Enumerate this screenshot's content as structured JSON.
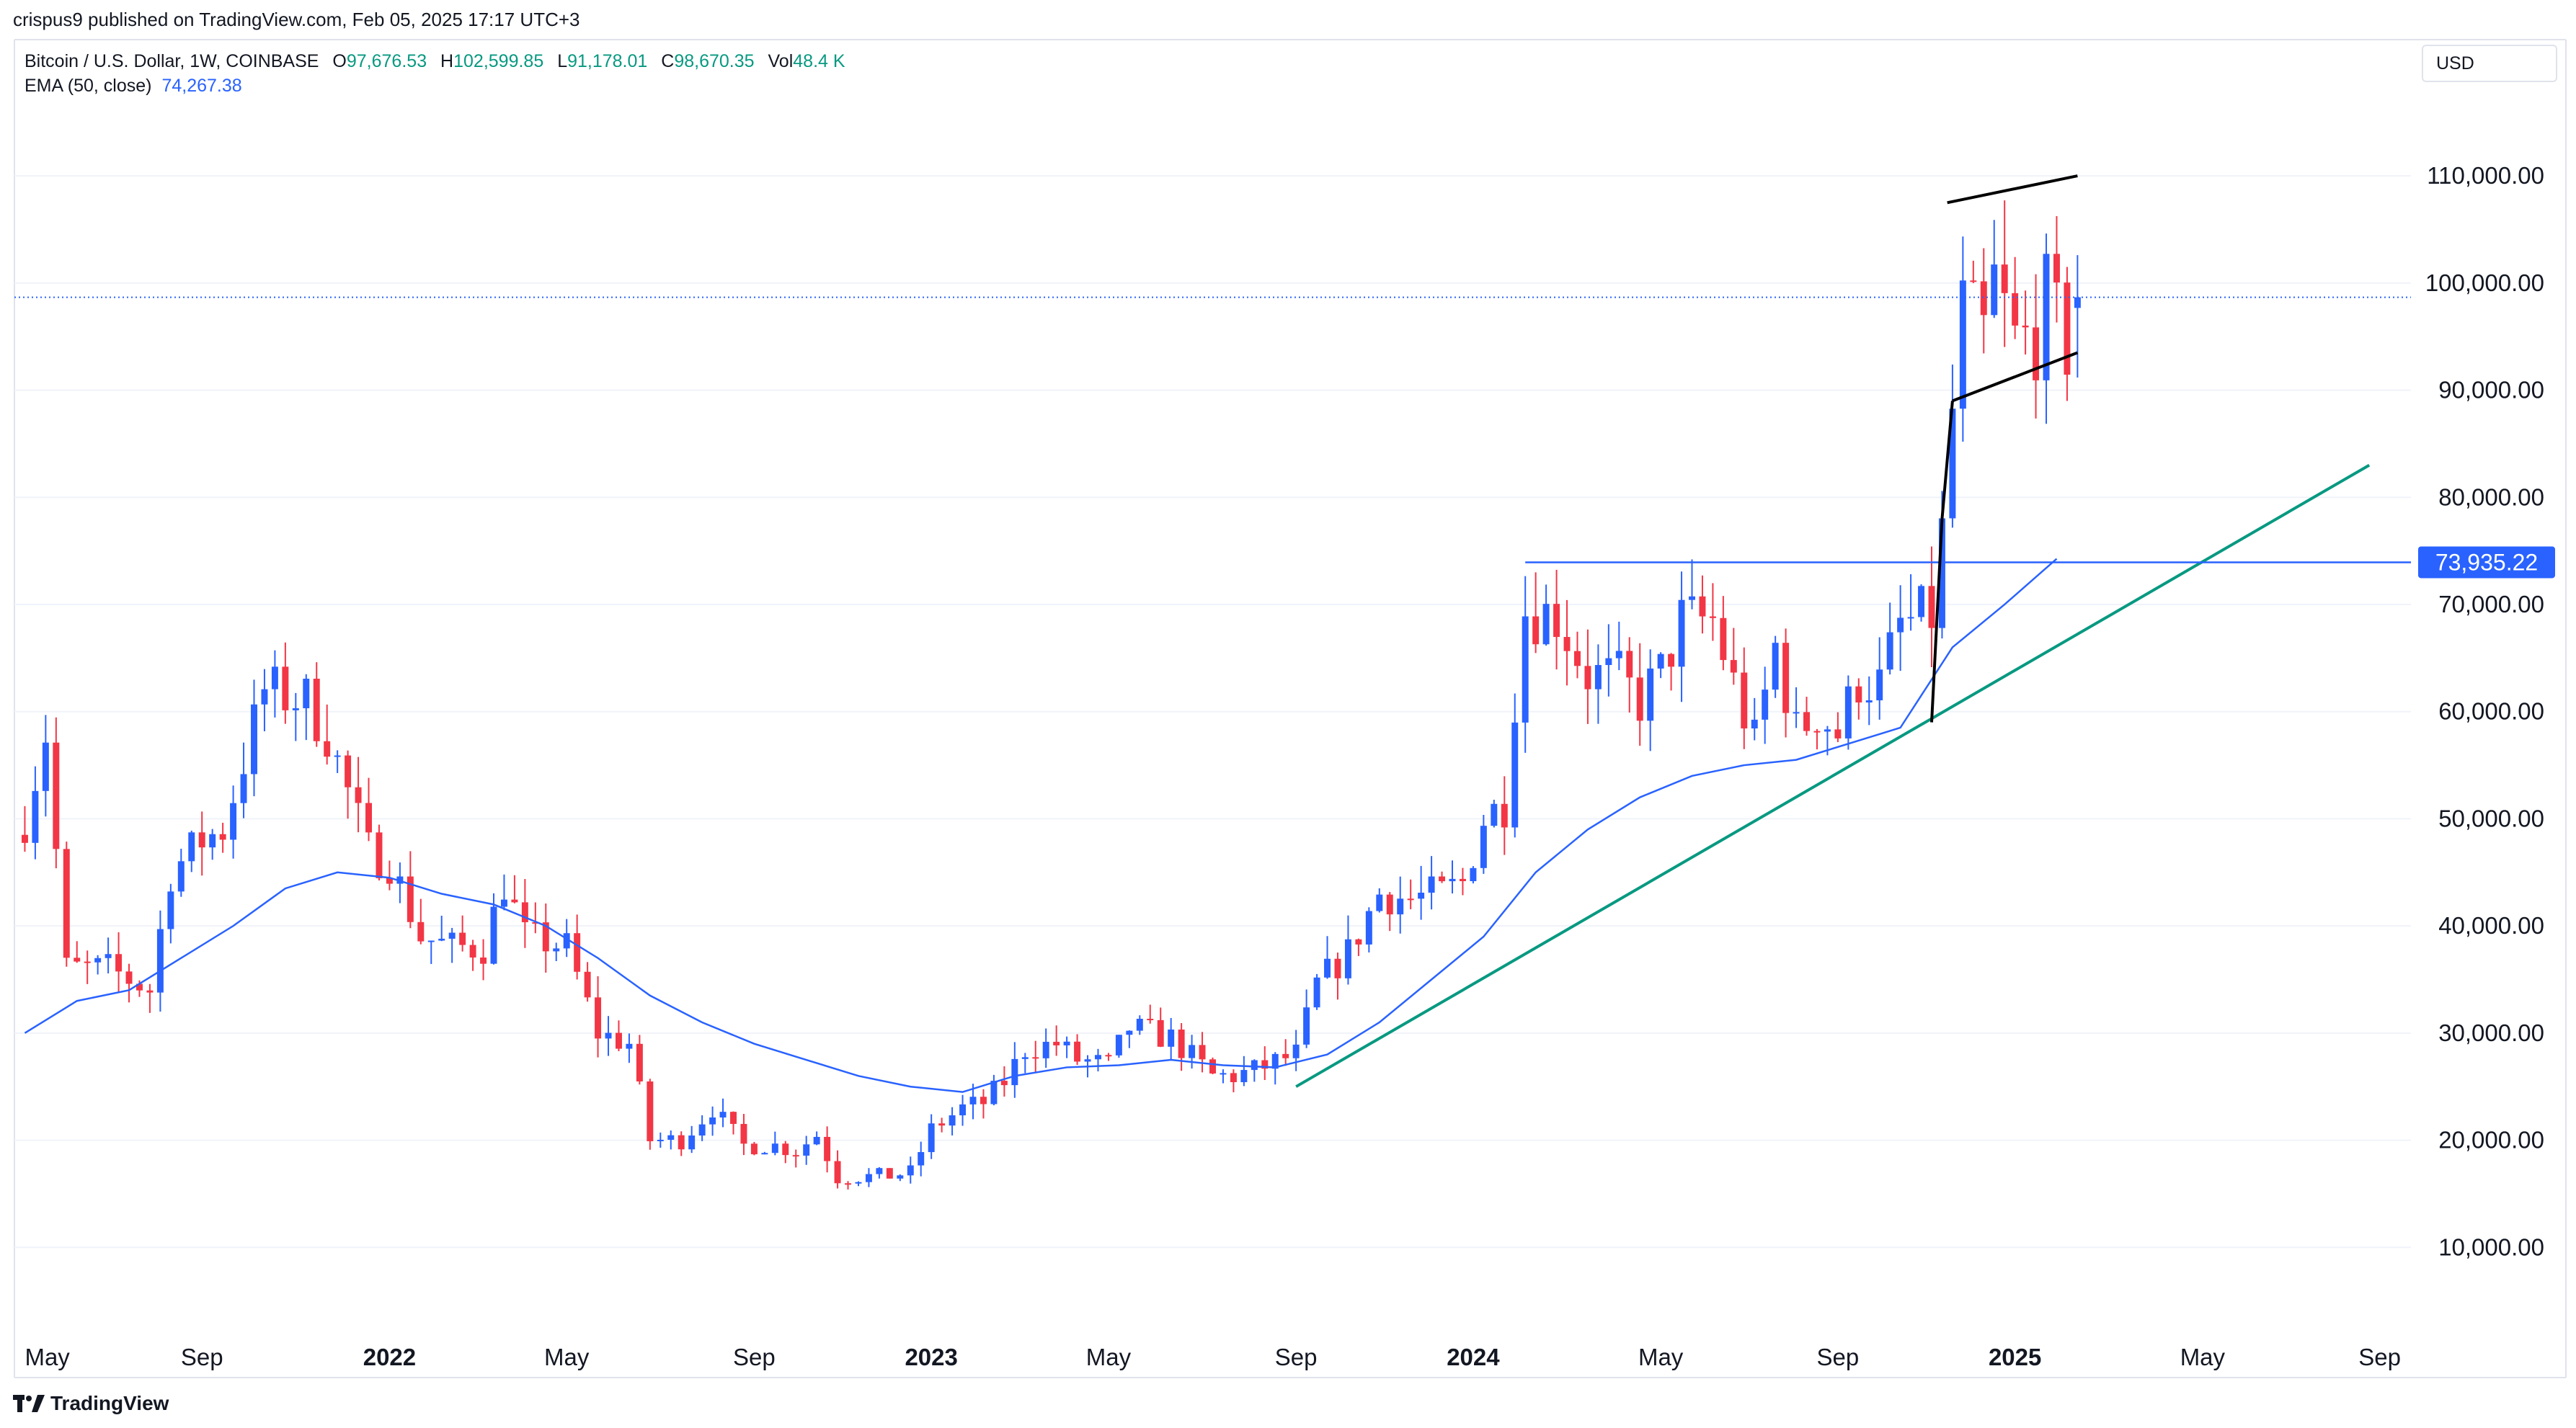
{
  "header": {
    "published": "crispus9 published on TradingView.com, Feb 05, 2025 17:17 UTC+3",
    "symbol": "Bitcoin / U.S. Dollar, 1W, COINBASE",
    "o_label": "O",
    "o_value": "97,676.53",
    "h_label": "H",
    "h_value": "102,599.85",
    "l_label": "L",
    "l_value": "91,178.01",
    "c_label": "C",
    "c_value": "98,670.35",
    "vol_label": "Vol",
    "vol_value": "48.4 K",
    "ema_label": "EMA (50, close)",
    "ema_value": "74,267.38"
  },
  "currency": "USD",
  "footer": {
    "brand": "TradingView"
  },
  "colors": {
    "up": "#2962ff",
    "down": "#f23645",
    "ema": "#2962ff",
    "trendline": "#089981",
    "pattern": "#000000",
    "level": "#2962ff",
    "grid": "#f0f3fa",
    "price_line": "#2962ff"
  },
  "chart_data": {
    "type": "candlestick",
    "interval": "1W",
    "x_axis": {
      "ticks": [
        {
          "t": 0,
          "label": "May"
        },
        {
          "t": 17,
          "label": "Sep"
        },
        {
          "t": 35,
          "label": "2022"
        },
        {
          "t": 52,
          "label": "May"
        },
        {
          "t": 70,
          "label": "Sep"
        },
        {
          "t": 87,
          "label": "2023"
        },
        {
          "t": 104,
          "label": "May"
        },
        {
          "t": 122,
          "label": "Sep"
        },
        {
          "t": 139,
          "label": "2024"
        },
        {
          "t": 157,
          "label": "May"
        },
        {
          "t": 174,
          "label": "Sep"
        },
        {
          "t": 191,
          "label": "2025"
        },
        {
          "t": 209,
          "label": "May"
        },
        {
          "t": 226,
          "label": "Sep"
        }
      ],
      "bold_labels": [
        "2022",
        "2023",
        "2024",
        "2025"
      ],
      "range": [
        -1,
        229
      ]
    },
    "y_axis": {
      "range": [
        0,
        117000
      ],
      "ticks": [
        10000,
        20000,
        30000,
        40000,
        50000,
        60000,
        70000,
        80000,
        90000,
        100000,
        110000
      ],
      "tick_labels": [
        "10,000.00",
        "20,000.00",
        "30,000.00",
        "40,000.00",
        "50,000.00",
        "60,000.00",
        "70,000.00",
        "80,000.00",
        "90,000.00",
        "100,000.00",
        "110,000.00"
      ],
      "position": "right"
    },
    "anchors": [
      [
        0,
        50000
      ],
      [
        2,
        58000
      ],
      [
        4,
        36000
      ],
      [
        8,
        36000
      ],
      [
        12,
        34000
      ],
      [
        14,
        45000
      ],
      [
        17,
        48000
      ],
      [
        19,
        49000
      ],
      [
        23,
        62000
      ],
      [
        27,
        61000
      ],
      [
        29,
        58000
      ],
      [
        33,
        47000
      ],
      [
        35,
        46000
      ],
      [
        38,
        39000
      ],
      [
        41,
        38000
      ],
      [
        44,
        38000
      ],
      [
        46,
        44000
      ],
      [
        48,
        39000
      ],
      [
        52,
        38000
      ],
      [
        55,
        30000
      ],
      [
        58,
        29000
      ],
      [
        60,
        20000
      ],
      [
        63,
        20000
      ],
      [
        66,
        23000
      ],
      [
        69,
        19500
      ],
      [
        72,
        19500
      ],
      [
        74,
        19000
      ],
      [
        76,
        20500
      ],
      [
        78,
        16500
      ],
      [
        83,
        16700
      ],
      [
        85,
        17000
      ],
      [
        87,
        21000
      ],
      [
        90,
        23000
      ],
      [
        92,
        23500
      ],
      [
        94,
        25500
      ],
      [
        96,
        28500
      ],
      [
        99,
        29000
      ],
      [
        101,
        27500
      ],
      [
        104,
        27000
      ],
      [
        106,
        30500
      ],
      [
        110,
        29500
      ],
      [
        114,
        26000
      ],
      [
        116,
        26000
      ],
      [
        118,
        26500
      ],
      [
        120,
        27300
      ],
      [
        122,
        28000
      ],
      [
        124,
        34500
      ],
      [
        127,
        37500
      ],
      [
        130,
        43000
      ],
      [
        133,
        42500
      ],
      [
        136,
        43000
      ],
      [
        138,
        44000
      ],
      [
        140,
        50000
      ],
      [
        142,
        51500
      ],
      [
        143,
        61500
      ],
      [
        144,
        69500
      ],
      [
        147,
        69000
      ],
      [
        150,
        63500
      ],
      [
        153,
        63000
      ],
      [
        155,
        61000
      ],
      [
        157,
        63500
      ],
      [
        159,
        68500
      ],
      [
        162,
        68500
      ],
      [
        164,
        62500
      ],
      [
        166,
        57000
      ],
      [
        168,
        66000
      ],
      [
        170,
        58000
      ],
      [
        172,
        60000
      ],
      [
        174,
        58000
      ],
      [
        176,
        63000
      ],
      [
        178,
        62500
      ],
      [
        180,
        68000
      ],
      [
        183,
        69000
      ],
      [
        184,
        76500
      ],
      [
        185,
        88000
      ],
      [
        186,
        97500
      ],
      [
        188,
        95000
      ],
      [
        189,
        100000
      ],
      [
        191,
        94500
      ],
      [
        193,
        95000
      ],
      [
        194,
        98500
      ],
      [
        196,
        94000
      ],
      [
        197,
        98000
      ]
    ],
    "ema": {
      "label": "EMA (50, close)",
      "points": [
        [
          0,
          30000
        ],
        [
          5,
          33000
        ],
        [
          10,
          34000
        ],
        [
          15,
          37000
        ],
        [
          20,
          40000
        ],
        [
          25,
          43500
        ],
        [
          30,
          45000
        ],
        [
          35,
          44500
        ],
        [
          40,
          43000
        ],
        [
          45,
          42000
        ],
        [
          50,
          40000
        ],
        [
          55,
          37000
        ],
        [
          60,
          33500
        ],
        [
          65,
          31000
        ],
        [
          70,
          29000
        ],
        [
          75,
          27500
        ],
        [
          80,
          26000
        ],
        [
          85,
          25000
        ],
        [
          90,
          24500
        ],
        [
          95,
          26000
        ],
        [
          100,
          26800
        ],
        [
          105,
          27000
        ],
        [
          110,
          27500
        ],
        [
          115,
          27000
        ],
        [
          120,
          26800
        ],
        [
          125,
          28000
        ],
        [
          130,
          31000
        ],
        [
          135,
          35000
        ],
        [
          140,
          39000
        ],
        [
          145,
          45000
        ],
        [
          150,
          49000
        ],
        [
          155,
          52000
        ],
        [
          160,
          54000
        ],
        [
          165,
          55000
        ],
        [
          170,
          55500
        ],
        [
          175,
          57000
        ],
        [
          180,
          58500
        ],
        [
          185,
          66000
        ],
        [
          190,
          70000
        ],
        [
          195,
          74267
        ]
      ]
    },
    "last_price": 98670.35,
    "horizontal_level": {
      "value": 73935.22,
      "label": "73,935.22",
      "from_t": 144
    },
    "trendline": {
      "from": [
        122,
        25000
      ],
      "to": [
        225,
        83000
      ]
    },
    "pattern_lines": [
      {
        "from": [
          183,
          59000
        ],
        "to": [
          184,
          78000
        ]
      },
      {
        "from": [
          184,
          78000
        ],
        "to": [
          185,
          89000
        ]
      },
      {
        "from": [
          185,
          89000
        ],
        "to": [
          197,
          93500
        ]
      },
      {
        "from": [
          184.5,
          107500
        ],
        "to": [
          197,
          110000
        ]
      }
    ]
  }
}
